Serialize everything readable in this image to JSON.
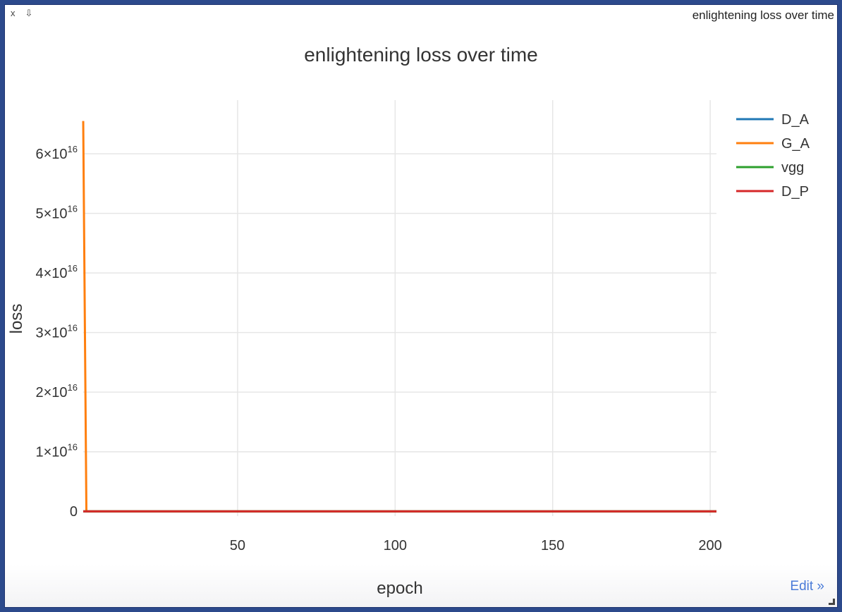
{
  "pane": {
    "close_label": "x",
    "download_label": "⇩",
    "title": "enlightening loss over time",
    "edit_label": "Edit »"
  },
  "colors": {
    "D_A": "#1f77b4",
    "G_A": "#ff7f0e",
    "vgg": "#2ca02c",
    "D_P": "#d62728",
    "grid": "#e6e6e6"
  },
  "chart_data": {
    "type": "line",
    "title": "enlightening loss over time",
    "xlabel": "epoch",
    "ylabel": "loss",
    "xlim": [
      1,
      202
    ],
    "ylim": [
      -800000000000000.0,
      6.9e+16
    ],
    "x_ticks": [
      50,
      100,
      150,
      200
    ],
    "y_ticks": [
      {
        "value": 0,
        "mantissa": "0",
        "exp": ""
      },
      {
        "value": 1e+16,
        "mantissa": "1×10",
        "exp": "16"
      },
      {
        "value": 2e+16,
        "mantissa": "2×10",
        "exp": "16"
      },
      {
        "value": 3e+16,
        "mantissa": "3×10",
        "exp": "16"
      },
      {
        "value": 4e+16,
        "mantissa": "4×10",
        "exp": "16"
      },
      {
        "value": 5e+16,
        "mantissa": "5×10",
        "exp": "16"
      },
      {
        "value": 6e+16,
        "mantissa": "6×10",
        "exp": "16"
      }
    ],
    "grid": true,
    "legend_position": "top-right",
    "series": [
      {
        "name": "D_A",
        "x": [
          1,
          2,
          202
        ],
        "y": [
          0,
          0,
          0
        ]
      },
      {
        "name": "G_A",
        "x": [
          1,
          2,
          3,
          202
        ],
        "y": [
          6.55e+16,
          0,
          0,
          0
        ]
      },
      {
        "name": "vgg",
        "x": [
          1,
          202
        ],
        "y": [
          0,
          0
        ]
      },
      {
        "name": "D_P",
        "x": [
          1,
          202
        ],
        "y": [
          0,
          0
        ]
      }
    ]
  }
}
